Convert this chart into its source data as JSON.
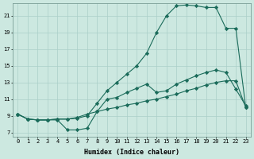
{
  "bg_color": "#cce8e0",
  "grid_color": "#aacfc8",
  "line_color": "#1a6b5a",
  "line_width": 0.8,
  "marker": "D",
  "marker_size": 2.2,
  "line1_x": [
    0,
    1,
    2,
    3,
    4,
    5,
    6,
    7,
    8,
    9,
    10,
    11,
    12,
    13,
    14,
    15,
    16,
    17,
    18,
    19,
    20,
    21,
    22,
    23
  ],
  "line1_y": [
    9.2,
    8.6,
    8.5,
    8.5,
    8.6,
    8.6,
    8.7,
    9.0,
    10.5,
    12.0,
    13.0,
    14.0,
    15.0,
    16.5,
    19.0,
    21.0,
    22.2,
    22.3,
    22.2,
    22.0,
    22.0,
    19.5,
    19.5,
    10.0
  ],
  "line2_x": [
    0,
    1,
    2,
    3,
    4,
    5,
    6,
    7,
    8,
    9,
    10,
    11,
    12,
    13,
    14,
    15,
    16,
    17,
    18,
    19,
    20,
    21,
    22,
    23
  ],
  "line2_y": [
    9.2,
    8.6,
    8.5,
    8.5,
    8.6,
    8.6,
    8.8,
    9.2,
    9.5,
    9.8,
    10.0,
    10.3,
    10.5,
    10.8,
    11.0,
    11.3,
    11.6,
    12.0,
    12.3,
    12.7,
    13.0,
    13.2,
    13.2,
    10.0
  ],
  "line3_x": [
    0,
    1,
    2,
    3,
    4,
    5,
    6,
    7,
    8,
    9,
    10,
    11,
    12,
    13,
    14,
    15,
    16,
    17,
    18,
    19,
    20,
    21,
    22,
    23
  ],
  "line3_y": [
    9.2,
    8.6,
    8.5,
    8.5,
    8.5,
    7.3,
    7.3,
    7.5,
    9.5,
    11.0,
    11.2,
    11.8,
    12.3,
    12.8,
    11.8,
    12.0,
    12.8,
    13.3,
    13.8,
    14.2,
    14.5,
    14.2,
    12.2,
    10.2
  ],
  "xlabel": "Humidex (Indice chaleur)",
  "xlim": [
    -0.5,
    23.5
  ],
  "ylim": [
    6.5,
    22.5
  ],
  "xticks": [
    0,
    1,
    2,
    3,
    4,
    5,
    6,
    7,
    8,
    9,
    10,
    11,
    12,
    13,
    14,
    15,
    16,
    17,
    18,
    19,
    20,
    21,
    22,
    23
  ],
  "yticks": [
    7,
    9,
    11,
    13,
    15,
    17,
    19,
    21
  ],
  "xlabel_fontsize": 6.0,
  "tick_fontsize": 5.0
}
